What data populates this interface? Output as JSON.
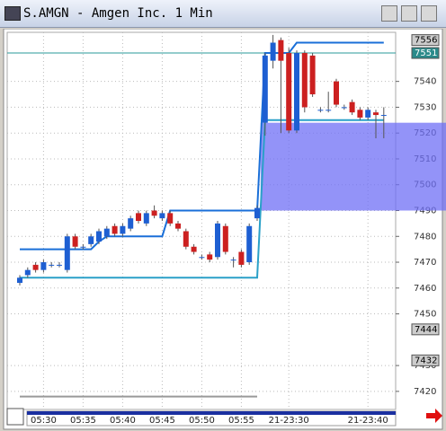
{
  "window": {
    "title": "S.AMGN - Amgen Inc. 1 Min"
  },
  "chart_data": {
    "type": "candlestick",
    "categories": [
      null,
      null,
      null,
      "05:30",
      null,
      null,
      null,
      null,
      "05:35",
      null,
      null,
      null,
      null,
      "05:40",
      null,
      null,
      null,
      null,
      "05:45",
      null,
      null,
      null,
      null,
      "05:50",
      null,
      null,
      null,
      null,
      "05:55",
      null,
      null,
      null,
      null,
      null,
      "21-23:30",
      null,
      null,
      null,
      null,
      null,
      null,
      null,
      null,
      null,
      "21-23:40",
      null,
      null
    ],
    "open": [
      7462,
      7465,
      7469,
      7467,
      7469,
      7469,
      7467,
      7480,
      7476,
      7477,
      7478,
      7480,
      7484,
      7481,
      7483,
      7489,
      7485,
      7490,
      7487,
      7489,
      7485,
      7482,
      7476,
      7472,
      7473,
      7472,
      7484,
      7471,
      7474,
      7470,
      7487,
      7524,
      7548,
      7556,
      7551,
      7521,
      7551,
      7550,
      7529,
      7529,
      7540,
      7530,
      7532,
      7529,
      7526,
      7528,
      7527
    ],
    "high": [
      7465,
      7468,
      7470,
      7471,
      7470,
      7470,
      7481,
      7481,
      7477,
      7481,
      7483,
      7484,
      7485,
      7485,
      7488,
      7490,
      7490,
      7492,
      7490,
      7490,
      7486,
      7483,
      7477,
      7473,
      7474,
      7486,
      7485,
      7472,
      7475,
      7485,
      7492,
      7551,
      7558,
      7557,
      7553,
      7552,
      7552,
      7551,
      7530,
      7536,
      7541,
      7531,
      7533,
      7530,
      7530,
      7529,
      7530
    ],
    "low": [
      7461,
      7464,
      7466,
      7466,
      7468,
      7468,
      7466,
      7475,
      7475,
      7476,
      7477,
      7479,
      7480,
      7480,
      7482,
      7485,
      7484,
      7487,
      7486,
      7484,
      7482,
      7475,
      7473,
      7471,
      7470,
      7471,
      7473,
      7468,
      7468,
      7469,
      7486,
      7519,
      7545,
      7520,
      7520,
      7520,
      7528,
      7534,
      7528,
      7528,
      7530,
      7529,
      7527,
      7525,
      7525,
      7518,
      7518
    ],
    "close": [
      7464,
      7467,
      7467,
      7470,
      7469,
      7469,
      7480,
      7476,
      7476,
      7480,
      7482,
      7483,
      7481,
      7484,
      7487,
      7486,
      7489,
      7488,
      7489,
      7485,
      7483,
      7476,
      7474,
      7472,
      7471,
      7485,
      7474,
      7471,
      7469,
      7484,
      7491,
      7550,
      7555,
      7548,
      7521,
      7551,
      7530,
      7535,
      7529,
      7529,
      7531,
      7530,
      7528,
      7526,
      7529,
      7527,
      7527
    ],
    "up_color": "#1e5fd2",
    "down_color": "#cc2020",
    "overlays": [
      {
        "color": "#1a6fd8",
        "values": [
          7475,
          7475,
          7475,
          7475,
          7475,
          7475,
          7475,
          7475,
          7475,
          7475,
          7478,
          7480,
          7480,
          7480,
          7480,
          7480,
          7480,
          7480,
          7480,
          7490,
          7490,
          7490,
          7490,
          7490,
          7490,
          7490,
          7490,
          7490,
          7490,
          7490,
          7490,
          7551,
          7551,
          7551,
          7551,
          7555,
          7555,
          7555,
          7555,
          7555,
          7555,
          7555,
          7555,
          7555,
          7555,
          7555,
          7555
        ]
      },
      {
        "color": "#2aa0c8",
        "values": [
          7464,
          7464,
          7464,
          7464,
          7464,
          7464,
          7464,
          7464,
          7464,
          7464,
          7464,
          7464,
          7464,
          7464,
          7464,
          7464,
          7464,
          7464,
          7464,
          7464,
          7464,
          7464,
          7464,
          7464,
          7464,
          7464,
          7464,
          7464,
          7464,
          7464,
          7464,
          7525,
          7525,
          7525,
          7525,
          7525,
          7525,
          7525,
          7525,
          7525,
          7525,
          7525,
          7525,
          7525,
          7525,
          7525,
          7525
        ]
      },
      {
        "color": "#999999",
        "values": [
          7418,
          7418,
          7418,
          7418,
          7418,
          7418,
          7418,
          7418,
          7418,
          7418,
          7418,
          7418,
          7418,
          7418,
          7418,
          7418,
          7418,
          7418,
          7418,
          7418,
          7418,
          7418,
          7418,
          7418,
          7418,
          7418,
          7418,
          7418,
          7418,
          7418,
          7418,
          null,
          null,
          null,
          null,
          null,
          null,
          null,
          null,
          null,
          null,
          null,
          null,
          null,
          null,
          null,
          null
        ]
      }
    ],
    "zone": {
      "from": 7490,
      "to": 7524,
      "color": "#6f6ff5"
    },
    "hline": 7551,
    "price_markers": [
      7556,
      7551,
      7444,
      7432
    ],
    "ylim": [
      7413,
      7559
    ],
    "yticks": [
      7420,
      7430,
      7450,
      7460,
      7470,
      7480,
      7490,
      7500,
      7510,
      7520,
      7530,
      7540
    ],
    "grid": true
  }
}
